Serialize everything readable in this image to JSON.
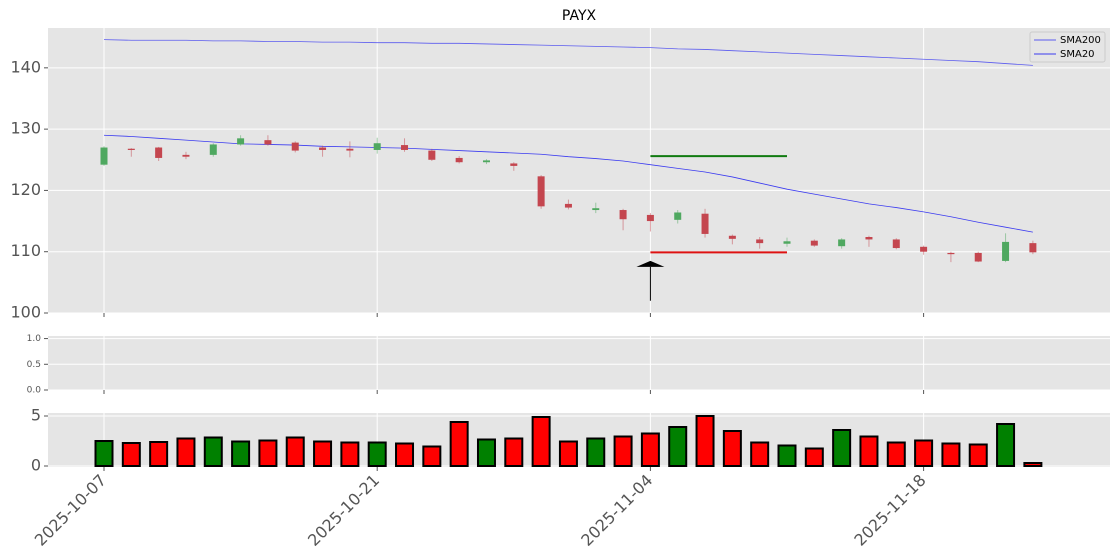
{
  "chart_data": [
    {
      "type": "candlestick",
      "title": "PAYX",
      "categories": [
        "2025-10-07",
        null,
        null,
        null,
        null,
        null,
        null,
        null,
        null,
        null,
        "2025-10-21",
        null,
        null,
        null,
        null,
        null,
        null,
        null,
        null,
        null,
        "2025-11-04",
        null,
        null,
        null,
        null,
        null,
        null,
        null,
        null,
        null,
        "2025-11-18",
        null,
        null,
        null,
        null
      ],
      "open": [
        124.2,
        126.8,
        127.0,
        125.8,
        125.8,
        127.5,
        128.2,
        127.8,
        127.0,
        126.8,
        126.6,
        127.4,
        126.5,
        125.3,
        124.6,
        124.4,
        122.3,
        117.8,
        116.8,
        116.8,
        116.0,
        115.2,
        116.2,
        112.6,
        112.0,
        111.3,
        111.8,
        110.9,
        112.4,
        112.0,
        110.8,
        109.8,
        109.8,
        108.5,
        111.4
      ],
      "high": [
        127.2,
        126.9,
        127.1,
        126.3,
        127.7,
        129.0,
        129.0,
        128.0,
        127.3,
        128.0,
        128.6,
        128.5,
        126.8,
        125.6,
        125.1,
        124.6,
        122.5,
        118.5,
        118.0,
        117.0,
        116.3,
        116.8,
        117.0,
        112.8,
        112.4,
        112.3,
        112.0,
        112.2,
        112.6,
        112.2,
        111.0,
        110.0,
        110.0,
        113.0,
        111.8
      ],
      "low": [
        124.0,
        125.5,
        124.8,
        125.1,
        125.5,
        127.3,
        127.3,
        126.2,
        125.5,
        125.4,
        126.0,
        126.3,
        124.8,
        124.4,
        124.3,
        123.2,
        117.0,
        116.9,
        116.3,
        113.5,
        113.3,
        114.6,
        112.3,
        111.2,
        110.5,
        110.8,
        110.8,
        110.5,
        110.8,
        110.4,
        109.5,
        108.3,
        108.3,
        108.3,
        109.6
      ],
      "close": [
        127.0,
        126.6,
        125.3,
        125.5,
        127.5,
        128.5,
        127.5,
        126.5,
        126.6,
        126.5,
        127.7,
        126.6,
        125.0,
        124.6,
        124.9,
        124.0,
        117.4,
        117.2,
        117.1,
        115.3,
        115.0,
        116.4,
        112.9,
        112.1,
        111.4,
        111.7,
        111.0,
        112.0,
        112.0,
        110.6,
        110.0,
        109.6,
        108.4,
        111.6,
        109.9
      ],
      "up_color": "#4fa860",
      "down_color": "#c4464f",
      "series": [
        {
          "name": "SMA200",
          "color": "#5b5bef",
          "values": [
            144.6,
            144.5,
            144.5,
            144.5,
            144.4,
            144.4,
            144.3,
            144.3,
            144.2,
            144.2,
            144.1,
            144.1,
            144.0,
            144.0,
            143.9,
            143.8,
            143.7,
            143.6,
            143.5,
            143.4,
            143.3,
            143.1,
            143.0,
            142.8,
            142.6,
            142.4,
            142.2,
            142.0,
            141.8,
            141.6,
            141.4,
            141.2,
            141.0,
            140.7,
            140.4
          ]
        },
        {
          "name": "SMA20",
          "color": "#3b3bf0",
          "values": [
            129.0,
            128.8,
            128.5,
            128.2,
            127.9,
            127.6,
            127.5,
            127.4,
            127.2,
            127.1,
            127.0,
            126.9,
            126.7,
            126.5,
            126.3,
            126.1,
            125.9,
            125.5,
            125.2,
            124.8,
            124.2,
            123.6,
            123.0,
            122.2,
            121.2,
            120.2,
            119.4,
            118.6,
            117.8,
            117.2,
            116.5,
            115.7,
            114.8,
            114.0,
            113.2
          ]
        }
      ],
      "levels": [
        {
          "value": 125.6,
          "color": "#107a10",
          "start": 20,
          "end": 25
        },
        {
          "value": 109.9,
          "color": "#dd1111",
          "start": 20,
          "end": 25
        }
      ],
      "arrow": {
        "x": 20,
        "y": 108.5,
        "tail": 102.0
      },
      "ylim": [
        100,
        146.5
      ],
      "yticks": [
        100,
        110,
        120,
        130,
        140
      ],
      "xticks": [
        0,
        10,
        20,
        30
      ],
      "grid": true,
      "legend": "upper right"
    },
    {
      "type": "empty",
      "ylim": [
        0,
        1.05
      ],
      "yticks": [
        {
          "value": 0,
          "label": "0.0"
        },
        0.5,
        {
          "value": 1,
          "label": "1.0"
        }
      ],
      "grid": true
    },
    {
      "type": "bar",
      "values": [
        2.5,
        2.3,
        2.4,
        2.75,
        2.85,
        2.45,
        2.55,
        2.85,
        2.45,
        2.35,
        2.35,
        2.25,
        1.95,
        4.4,
        2.65,
        2.75,
        4.9,
        2.45,
        2.75,
        2.95,
        3.25,
        3.9,
        5.0,
        3.5,
        2.35,
        2.05,
        1.75,
        3.6,
        2.95,
        2.35,
        2.55,
        2.25,
        2.15,
        4.2,
        0.3
      ],
      "up_color": "#008000",
      "down_color": "#ff0000",
      "edge_color": "#000000",
      "ylim": [
        -0.1,
        5.3
      ],
      "yticks": [
        0,
        5
      ],
      "grid": true
    }
  ]
}
